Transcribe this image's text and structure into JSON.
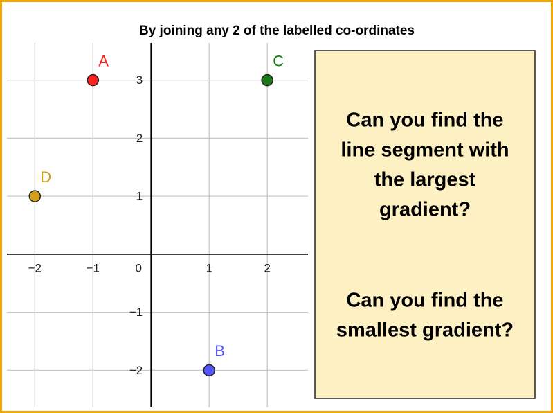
{
  "chart_data": {
    "type": "scatter",
    "title": "By joining any 2 of the labelled co-ordinates",
    "xlim": [
      -2.48,
      2.7
    ],
    "ylim": [
      -2.64,
      3.64
    ],
    "xticks": [
      {
        "value": -2,
        "label": "−2"
      },
      {
        "value": -1,
        "label": "−1"
      },
      0,
      1,
      2
    ],
    "yticks": [
      {
        "value": -2,
        "label": "−2"
      },
      {
        "value": -1,
        "label": "−1"
      },
      1,
      2,
      3
    ],
    "grid": true,
    "points": [
      {
        "name": "A",
        "x": -1,
        "y": 3,
        "color": "#ff2020"
      },
      {
        "name": "B",
        "x": 1,
        "y": -2,
        "color": "#5555ff"
      },
      {
        "name": "C",
        "x": 2,
        "y": 3,
        "color": "#1a7a1a"
      },
      {
        "name": "D",
        "x": -2,
        "y": 1,
        "color": "#d4a017"
      }
    ]
  },
  "panel": {
    "paragraphs": [
      [
        "Can you find the",
        "line segment with",
        "the largest",
        "gradient?"
      ],
      [
        "Can you find the",
        "smallest gradient?"
      ]
    ]
  }
}
